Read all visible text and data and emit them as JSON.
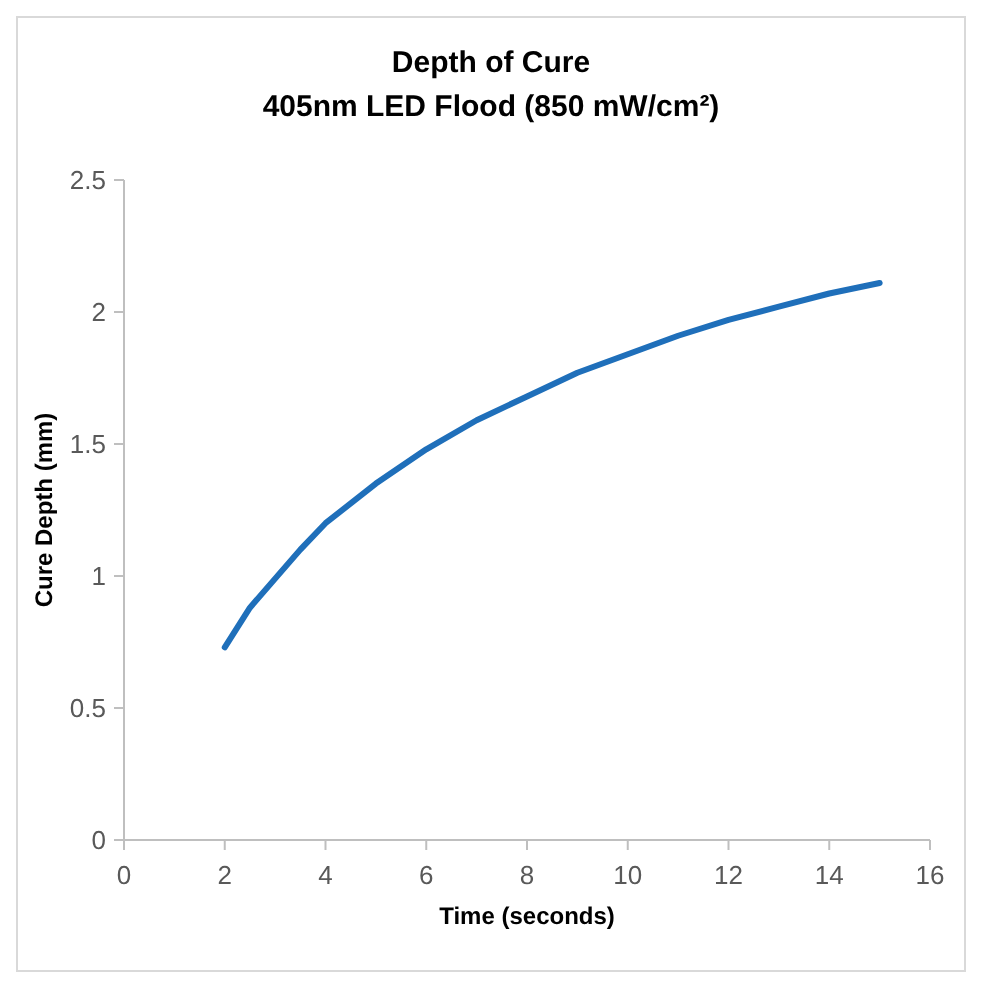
{
  "chart_data": {
    "type": "line",
    "title": "Depth of Cure",
    "subtitle": "405nm LED Flood (850 mW/cm²)",
    "xlabel": "Time (seconds)",
    "ylabel": "Cure Depth (mm)",
    "x": [
      2,
      2.5,
      3,
      3.5,
      4,
      5,
      6,
      7,
      8,
      9,
      10,
      11,
      12,
      13,
      14,
      15
    ],
    "series": [
      {
        "color": "#1f6fba",
        "values": [
          0.73,
          0.88,
          0.99,
          1.1,
          1.2,
          1.35,
          1.48,
          1.59,
          1.68,
          1.77,
          1.84,
          1.91,
          1.97,
          2.02,
          2.07,
          2.11
        ]
      }
    ],
    "xlim": [
      0,
      16
    ],
    "xticks": [
      0,
      2,
      4,
      6,
      8,
      10,
      12,
      14,
      16
    ],
    "ylim": [
      0,
      2.5
    ],
    "yticks": [
      0,
      0.5,
      1,
      1.5,
      2,
      2.5
    ],
    "grid": false,
    "marker": "none",
    "line_style": "solid"
  }
}
